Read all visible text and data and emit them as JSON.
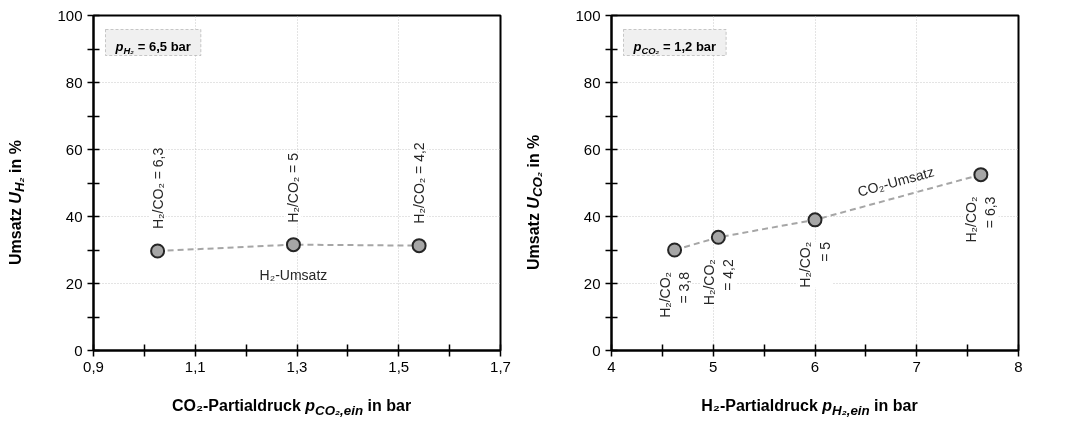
{
  "chart_data": [
    {
      "type": "line",
      "xlabel": "CO₂-Partialdruck p$_{CO₂,ein}$ in bar",
      "ylabel": "Umsatz U$_{H₂}$ in %",
      "x": [
        1.026,
        1.293,
        1.54
      ],
      "series": [
        {
          "name": "H₂-Umsatz",
          "color": "#a6a6a6",
          "values": [
            29.7,
            31.6,
            31.3
          ]
        }
      ],
      "marker": "circle",
      "line_style": "dashed",
      "grid": true,
      "legend": false,
      "xlim": [
        0.9,
        1.7
      ],
      "xticks": [
        {
          "value": 0.9,
          "label": "0,9"
        },
        {
          "value": 1.0,
          "label": null
        },
        {
          "value": 1.1,
          "label": "1,1"
        },
        {
          "value": 1.2,
          "label": null
        },
        {
          "value": 1.3,
          "label": "1,3"
        },
        {
          "value": 1.4,
          "label": null
        },
        {
          "value": 1.5,
          "label": "1,5"
        },
        {
          "value": 1.6,
          "label": null
        },
        {
          "value": 1.7,
          "label": "1,7"
        }
      ],
      "ylim": [
        0,
        100
      ],
      "yticks": [
        0,
        {
          "value": 10,
          "label": null
        },
        20,
        {
          "value": 30,
          "label": null
        },
        40,
        {
          "value": 50,
          "label": null
        },
        60,
        {
          "value": 70,
          "label": null
        },
        80,
        {
          "value": 90,
          "label": null
        },
        100
      ],
      "annotations": [
        "p$_{H₂}$ = 6,5 bar",
        {
          "text": "H₂/CO₂ = 6,3",
          "x": 1.026,
          "y": 29.7
        },
        {
          "text": "H₂/CO₂ = 5",
          "x": 1.293,
          "y": 31.6
        },
        {
          "text": "H₂/CO₂ = 4,2",
          "x": 1.54,
          "y": 31.3
        }
      ]
    },
    {
      "type": "line",
      "xlabel": "H₂-Partialdruck p$_{H₂,ein}$ in bar",
      "ylabel": "Umsatz U$_{CO₂}$ in %",
      "x": [
        4.62,
        5.05,
        6.0,
        7.63
      ],
      "series": [
        {
          "name": "CO₂-Umsatz",
          "color": "#a6a6a6",
          "values": [
            30.0,
            33.8,
            39.0,
            52.5
          ]
        }
      ],
      "marker": "circle",
      "line_style": "dashed",
      "grid": true,
      "legend": false,
      "xlim": [
        4,
        8
      ],
      "xticks": [
        4,
        {
          "value": 4.5,
          "label": null
        },
        5,
        {
          "value": 5.5,
          "label": null
        },
        6,
        {
          "value": 6.5,
          "label": null
        },
        7,
        {
          "value": 7.5,
          "label": null
        },
        8
      ],
      "ylim": [
        0,
        100
      ],
      "yticks": [
        0,
        {
          "value": 10,
          "label": null
        },
        20,
        {
          "value": 30,
          "label": null
        },
        40,
        {
          "value": 50,
          "label": null
        },
        60,
        {
          "value": 70,
          "label": null
        },
        80,
        {
          "value": 90,
          "label": null
        },
        100
      ],
      "annotations": [
        "p$_{CO₂}$ = 1,2 bar",
        {
          "text": "H₂/CO₂\n= 3,8",
          "x": 4.62,
          "y": 30.0
        },
        {
          "text": "H₂/CO₂\n= 4,2",
          "x": 5.05,
          "y": 33.8
        },
        {
          "text": "H₂/CO₂\n= 5",
          "x": 6.0,
          "y": 39.0
        },
        {
          "text": "H₂/CO₂\n= 6,3",
          "x": 7.63,
          "y": 52.5
        }
      ]
    }
  ]
}
